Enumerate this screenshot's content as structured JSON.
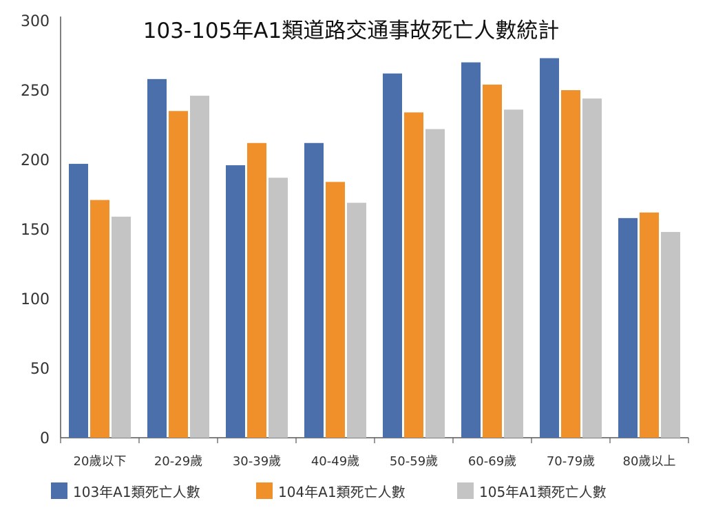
{
  "chart_data": {
    "type": "bar",
    "title": "103-105年A1類道路交通事故死亡人數統計",
    "xlabel": "",
    "ylabel": "",
    "ylim": [
      0,
      300
    ],
    "yticks": [
      "0",
      "50",
      "100",
      "150",
      "200",
      "250",
      "300"
    ],
    "grid": false,
    "legend_position": "bottom",
    "categories": [
      "20歲以下",
      "20-29歲",
      "30-39歲",
      "40-49歲",
      "50-59歲",
      "60-69歲",
      "70-79歲",
      "80歲以上"
    ],
    "series": [
      {
        "name": "103年A1類死亡人數",
        "color": "#4a6fab",
        "values": [
          197,
          258,
          196,
          212,
          262,
          270,
          273,
          158
        ]
      },
      {
        "name": "104年A1類死亡人數",
        "color": "#f0902a",
        "values": [
          171,
          235,
          212,
          184,
          234,
          254,
          250,
          162
        ]
      },
      {
        "name": "105年A1類死亡人數",
        "color": "#c4c4c4",
        "values": [
          159,
          246,
          187,
          169,
          222,
          236,
          244,
          148
        ]
      }
    ]
  }
}
